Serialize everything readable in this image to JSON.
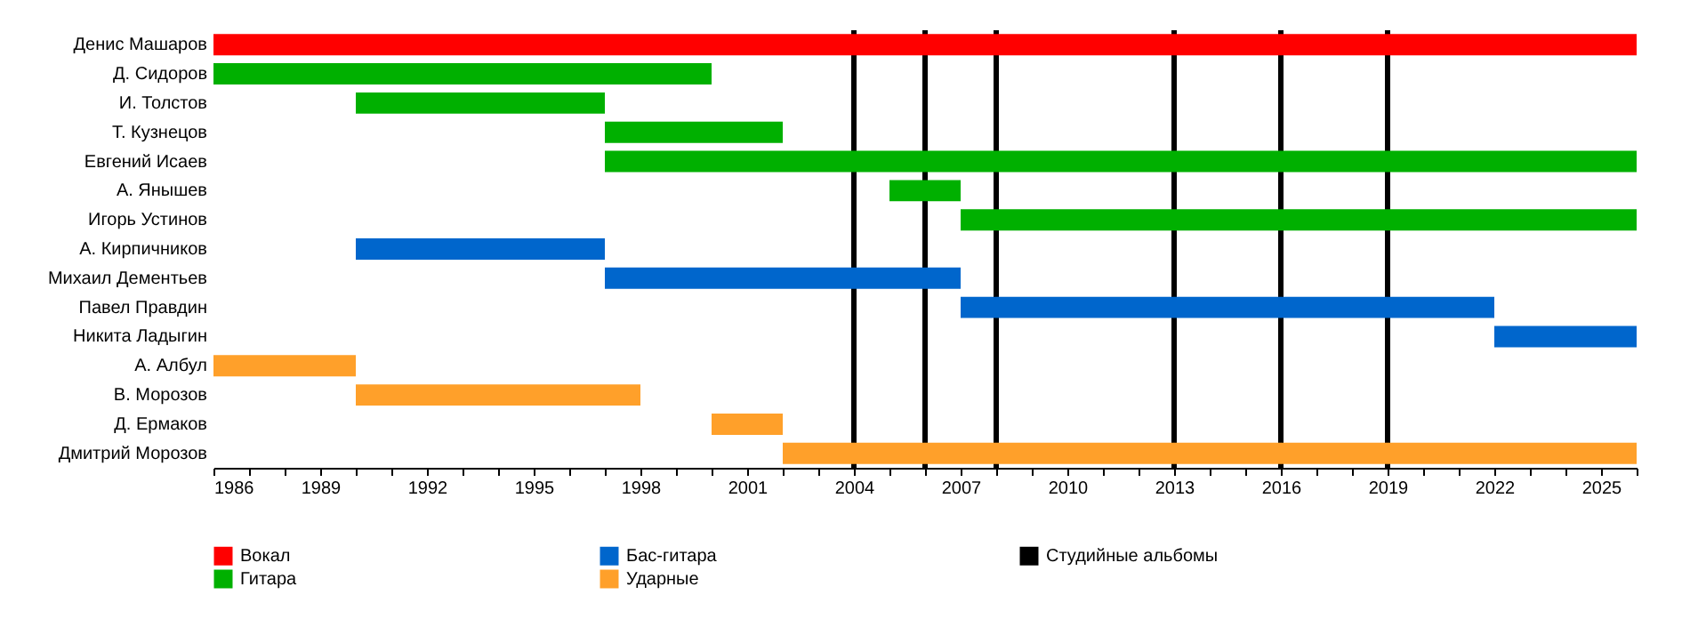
{
  "chart_data": {
    "type": "bar",
    "orientation": "horizontal",
    "categories": [
      "Денис Машаров",
      "Д. Сидоров",
      "И. Толстов",
      "Т. Кузнецов",
      "Евгений Исаев",
      "А. Янышев",
      "Игорь Устинов",
      "А. Кирпичников",
      "Михаил Дементьев",
      "Павел Правдин",
      "Никита Ладыгин",
      "А. Албул",
      "В. Морозов",
      "Д. Ермаков",
      "Дмитрий Морозов"
    ],
    "series": [
      {
        "name": "Вокал",
        "color": "#ff0000",
        "base": [
          1986,
          null,
          null,
          null,
          null,
          null,
          null,
          null,
          null,
          null,
          null,
          null,
          null,
          null,
          null
        ],
        "values": [
          40,
          null,
          null,
          null,
          null,
          null,
          null,
          null,
          null,
          null,
          null,
          null,
          null,
          null,
          null
        ]
      },
      {
        "name": "Гитара",
        "color": "#00b000",
        "base": [
          null,
          1986,
          1990,
          1997,
          1997,
          2005,
          2007,
          null,
          null,
          null,
          null,
          null,
          null,
          null,
          null
        ],
        "values": [
          null,
          14,
          7,
          5,
          29,
          2,
          19,
          null,
          null,
          null,
          null,
          null,
          null,
          null,
          null
        ]
      },
      {
        "name": "Бас-гитара",
        "color": "#0066cc",
        "base": [
          null,
          null,
          null,
          null,
          null,
          null,
          null,
          1990,
          1997,
          2007,
          2022,
          null,
          null,
          null,
          null
        ],
        "values": [
          null,
          null,
          null,
          null,
          null,
          null,
          null,
          7,
          10,
          15,
          4,
          null,
          null,
          null,
          null
        ]
      },
      {
        "name": "Ударные",
        "color": "#ffa02a",
        "base": [
          null,
          null,
          null,
          null,
          null,
          null,
          null,
          null,
          null,
          null,
          null,
          1986,
          1990,
          2000,
          2002
        ],
        "values": [
          null,
          null,
          null,
          null,
          null,
          null,
          null,
          null,
          null,
          null,
          null,
          4,
          8,
          2,
          24
        ]
      }
    ],
    "ref_lines": [
      {
        "axis": "x",
        "value": 2004,
        "label": "Студийные альбомы",
        "color": "#000000"
      },
      {
        "axis": "x",
        "value": 2006,
        "color": "#000000"
      },
      {
        "axis": "x",
        "value": 2008,
        "color": "#000000"
      },
      {
        "axis": "x",
        "value": 2013,
        "color": "#000000"
      },
      {
        "axis": "x",
        "value": 2016,
        "color": "#000000"
      },
      {
        "axis": "x",
        "value": 2019,
        "color": "#000000"
      }
    ],
    "xlim": [
      1986,
      2026
    ],
    "xticks": [
      1986,
      {
        "value": 1987,
        "label": null
      },
      {
        "value": 1988,
        "label": null
      },
      1989,
      {
        "value": 1990,
        "label": null
      },
      {
        "value": 1991,
        "label": null
      },
      1992,
      {
        "value": 1993,
        "label": null
      },
      {
        "value": 1994,
        "label": null
      },
      1995,
      {
        "value": 1996,
        "label": null
      },
      {
        "value": 1997,
        "label": null
      },
      1998,
      {
        "value": 1999,
        "label": null
      },
      {
        "value": 2000,
        "label": null
      },
      2001,
      {
        "value": 2002,
        "label": null
      },
      {
        "value": 2003,
        "label": null
      },
      2004,
      {
        "value": 2005,
        "label": null
      },
      {
        "value": 2006,
        "label": null
      },
      2007,
      {
        "value": 2008,
        "label": null
      },
      {
        "value": 2009,
        "label": null
      },
      2010,
      {
        "value": 2011,
        "label": null
      },
      {
        "value": 2012,
        "label": null
      },
      2013,
      {
        "value": 2014,
        "label": null
      },
      {
        "value": 2015,
        "label": null
      },
      2016,
      {
        "value": 2017,
        "label": null
      },
      {
        "value": 2018,
        "label": null
      },
      2019,
      {
        "value": 2020,
        "label": null
      },
      {
        "value": 2021,
        "label": null
      },
      2022,
      {
        "value": 2023,
        "label": null
      },
      {
        "value": 2024,
        "label": null
      },
      2025,
      {
        "value": 2026,
        "label": null
      }
    ],
    "grid": false,
    "legend": "bottom"
  }
}
